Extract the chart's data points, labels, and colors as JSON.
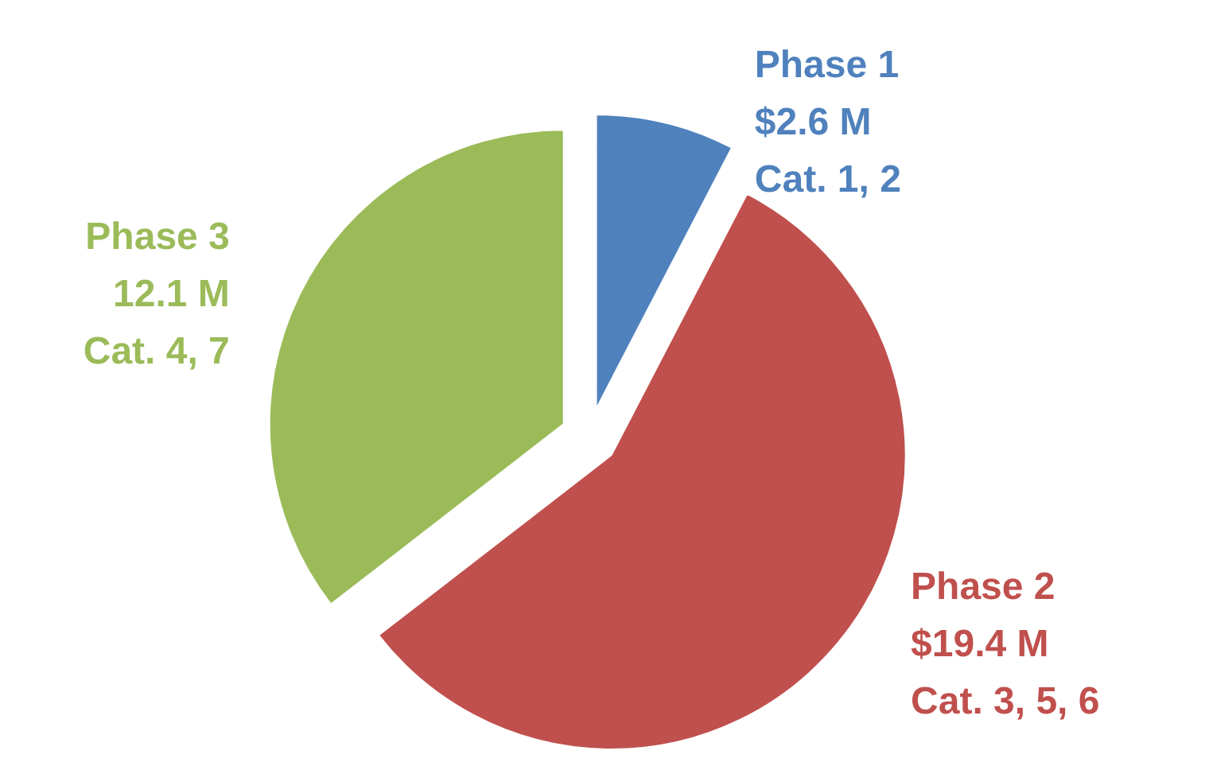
{
  "chart_data": {
    "type": "pie",
    "categories": [
      "Phase 1",
      "Phase 2",
      "Phase 3"
    ],
    "values": [
      2.6,
      19.4,
      12.1
    ],
    "colors": [
      "#4f81bd",
      "#c0504d",
      "#9bbb59"
    ],
    "value_labels": [
      "$2.6 M",
      "$19.4 M",
      "12.1 M"
    ],
    "annotations": [
      "Cat. 1, 2",
      "Cat. 3, 5, 6",
      "Cat. 4, 7"
    ],
    "legend": false
  }
}
